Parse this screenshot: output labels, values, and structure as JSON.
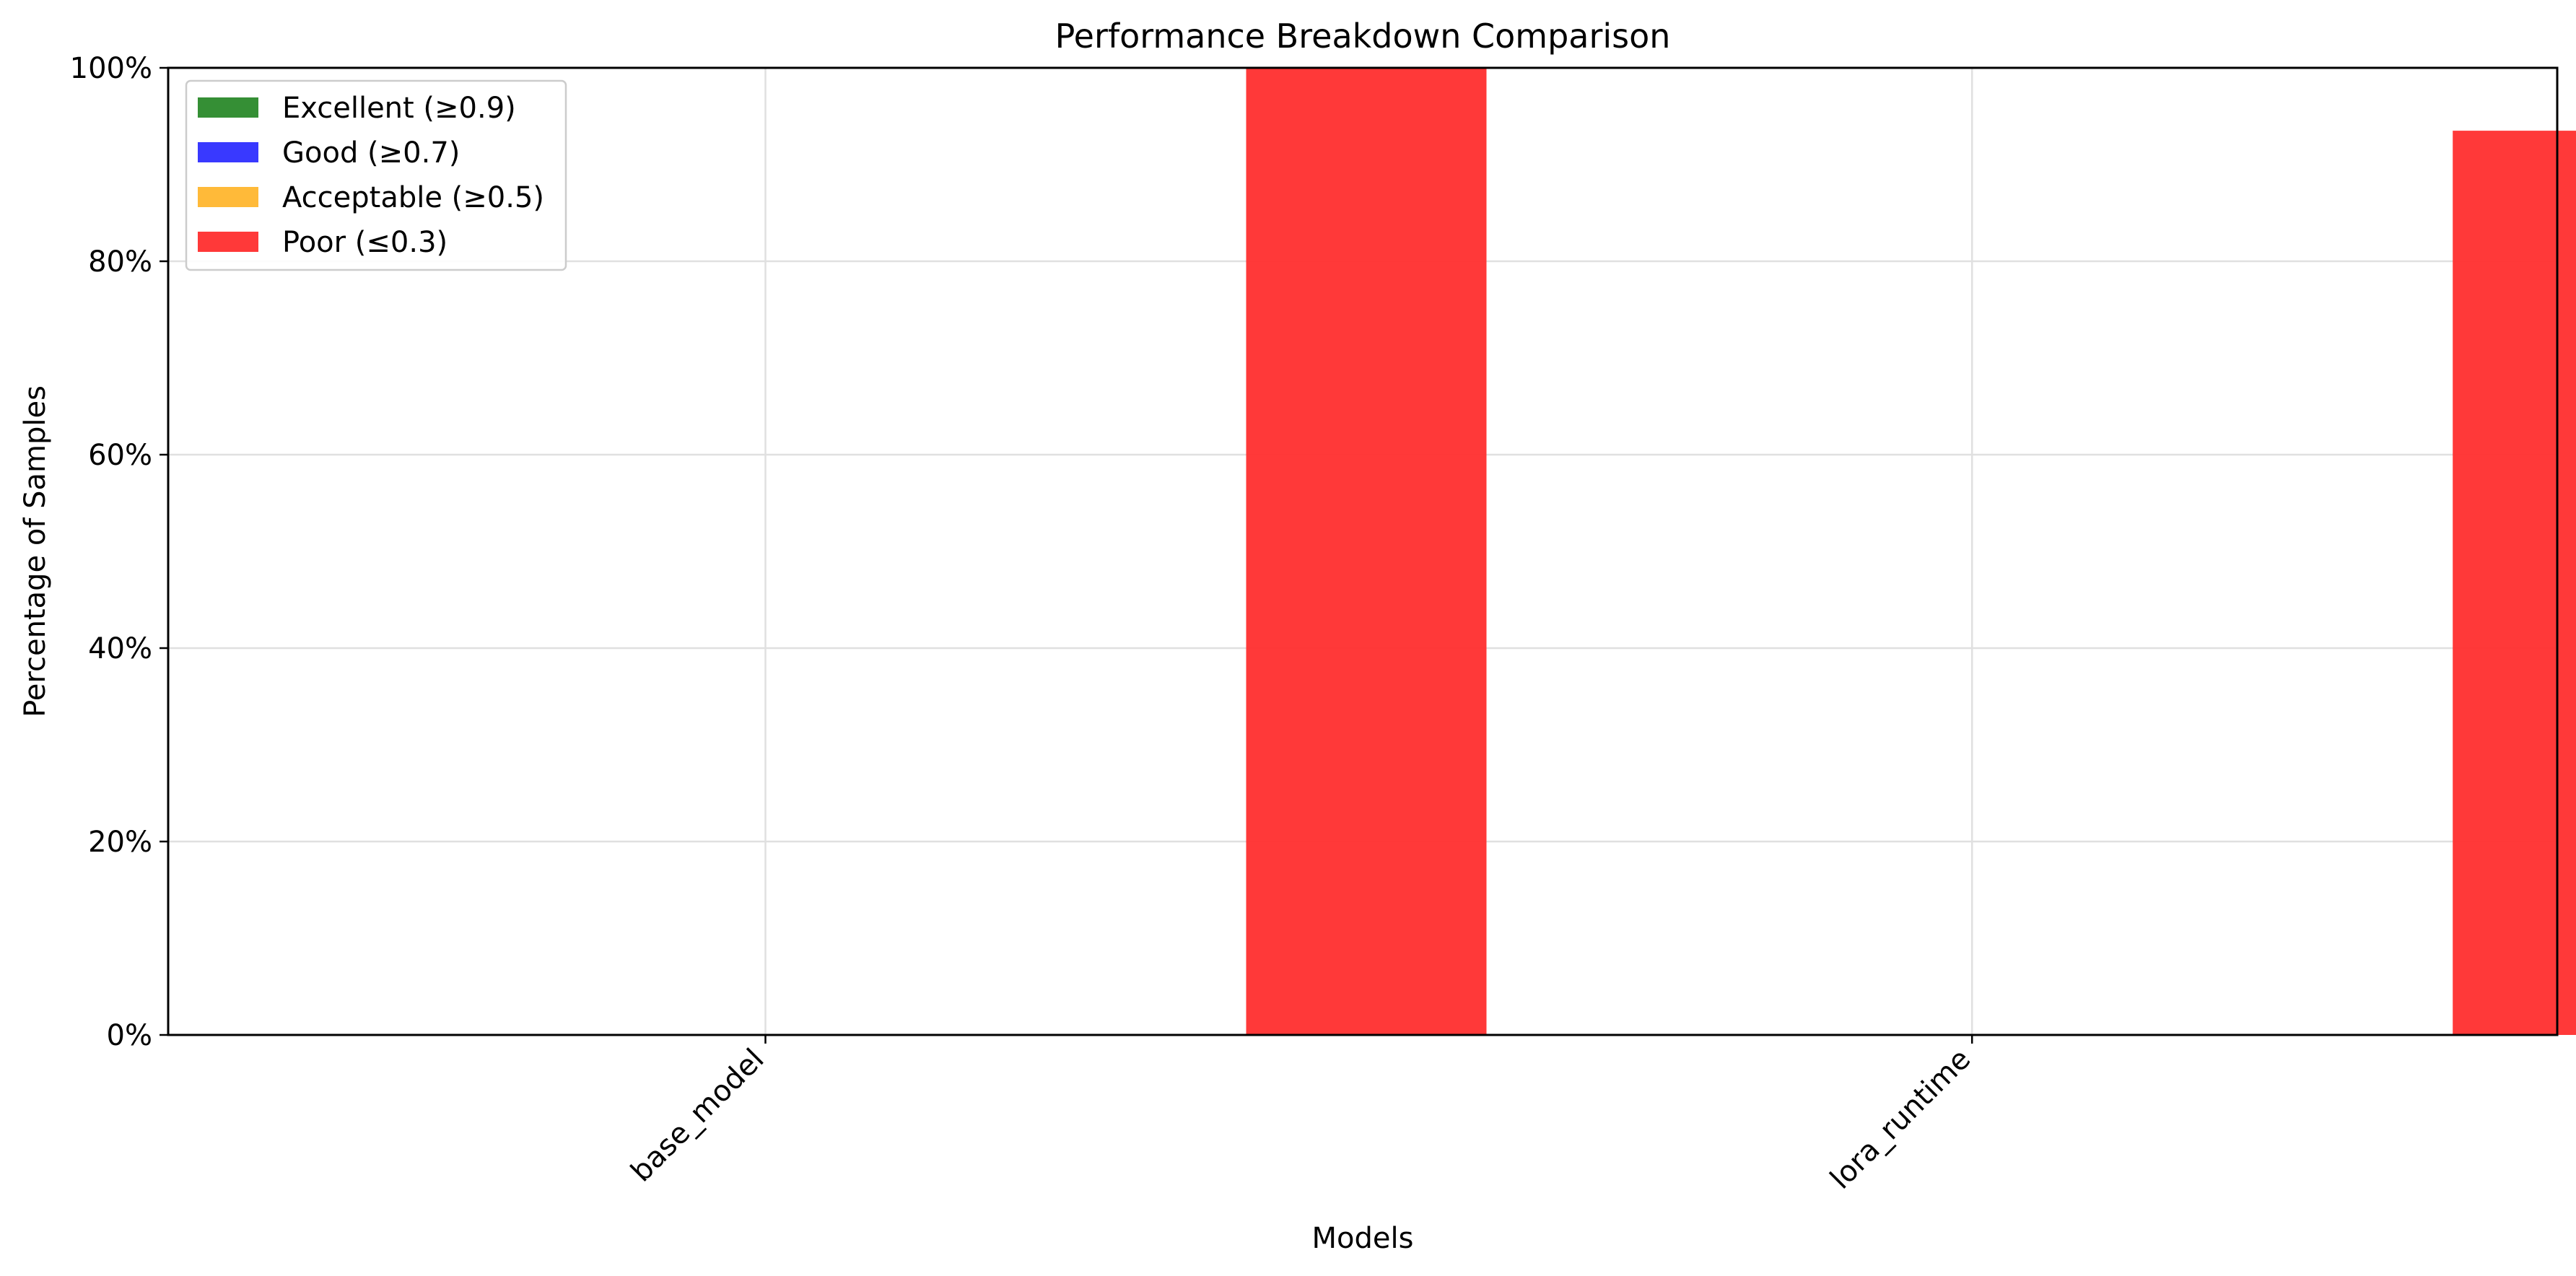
{
  "chart_data": {
    "type": "bar",
    "title": "Performance Breakdown Comparison",
    "xlabel": "Models",
    "ylabel": "Percentage of Samples",
    "categories": [
      "base_model",
      "lora_runtime"
    ],
    "series": [
      {
        "name": "Excellent (≥0.9)",
        "color": "#2e8b2e",
        "values": [
          0,
          0
        ]
      },
      {
        "name": "Good (≥0.7)",
        "color": "#3333ff",
        "values": [
          0,
          0
        ]
      },
      {
        "name": "Acceptable (≥0.5)",
        "color": "#ffb833",
        "values": [
          0,
          0
        ]
      },
      {
        "name": "Poor (≤0.3)",
        "color": "#ff3333",
        "values": [
          100,
          93.5
        ]
      }
    ],
    "ylim": [
      0,
      100
    ],
    "yticks": [
      0,
      20,
      40,
      60,
      80,
      100
    ],
    "ytick_labels": [
      "0%",
      "20%",
      "40%",
      "60%",
      "80%",
      "100%"
    ],
    "grid": true,
    "legend_position": "upper-left"
  }
}
